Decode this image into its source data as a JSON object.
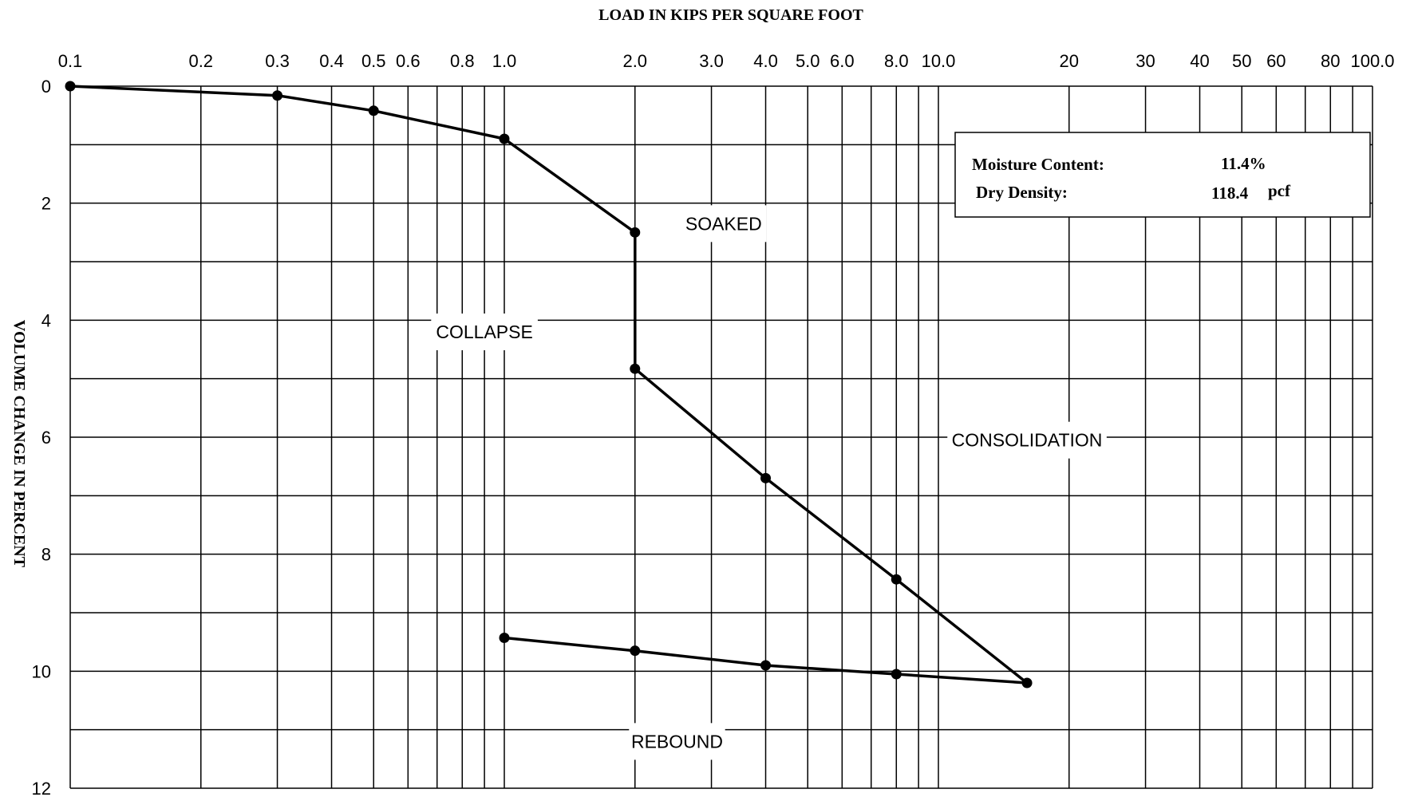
{
  "chart_data": {
    "type": "line",
    "title": "LOAD IN KIPS PER SQUARE FOOT",
    "xlabel": "LOAD IN KIPS PER SQUARE FOOT",
    "ylabel": "VOLUME CHANGE IN PERCENT",
    "x_scale": "log",
    "xlim": [
      0.1,
      100.0
    ],
    "ylim": [
      12,
      0
    ],
    "y_inverted": true,
    "grid": true,
    "x_tick_labels": [
      {
        "value": 0.1,
        "label": "0.1"
      },
      {
        "value": 0.2,
        "label": "0.2"
      },
      {
        "value": 0.3,
        "label": "0.3"
      },
      {
        "value": 0.4,
        "label": "0.4"
      },
      {
        "value": 0.5,
        "label": "0.5"
      },
      {
        "value": 0.6,
        "label": "0.6"
      },
      {
        "value": 0.8,
        "label": "0.8"
      },
      {
        "value": 1.0,
        "label": "1.0"
      },
      {
        "value": 2.0,
        "label": "2.0"
      },
      {
        "value": 3.0,
        "label": "3.0"
      },
      {
        "value": 4.0,
        "label": "4.0"
      },
      {
        "value": 5.0,
        "label": "5.0"
      },
      {
        "value": 6.0,
        "label": "6.0"
      },
      {
        "value": 8.0,
        "label": "8.0"
      },
      {
        "value": 10.0,
        "label": "10.0"
      },
      {
        "value": 20,
        "label": "20"
      },
      {
        "value": 30,
        "label": "30"
      },
      {
        "value": 40,
        "label": "40"
      },
      {
        "value": 50,
        "label": "50"
      },
      {
        "value": 60,
        "label": "60"
      },
      {
        "value": 80,
        "label": "80"
      },
      {
        "value": 100.0,
        "label": "100.0"
      }
    ],
    "x_gridlines": [
      0.1,
      0.2,
      0.3,
      0.4,
      0.5,
      0.6,
      0.7,
      0.8,
      0.9,
      1,
      2,
      3,
      4,
      5,
      6,
      7,
      8,
      9,
      10,
      20,
      30,
      40,
      50,
      60,
      70,
      80,
      90,
      100
    ],
    "y_ticks": [
      0,
      2,
      4,
      6,
      8,
      10,
      12
    ],
    "y_gridlines": [
      0,
      1,
      2,
      3,
      4,
      5,
      6,
      7,
      8,
      9,
      10,
      11,
      12
    ],
    "series": [
      {
        "points": [
          {
            "x": 0.1,
            "y": 0.0
          },
          {
            "x": 0.3,
            "y": 0.16
          },
          {
            "x": 0.5,
            "y": 0.42
          },
          {
            "x": 1.0,
            "y": 0.9
          },
          {
            "x": 2.0,
            "y": 2.5
          },
          {
            "x": 2.0,
            "y": 4.83
          },
          {
            "x": 4.0,
            "y": 6.7
          },
          {
            "x": 8.0,
            "y": 8.43
          },
          {
            "x": 16.0,
            "y": 10.2
          },
          {
            "x": 8.0,
            "y": 10.05
          },
          {
            "x": 4.0,
            "y": 9.9
          },
          {
            "x": 2.0,
            "y": 9.65
          },
          {
            "x": 1.0,
            "y": 9.43
          }
        ]
      }
    ],
    "annotations": [
      {
        "text": "SOAKED",
        "x": 3.2,
        "y": 2.35
      },
      {
        "text": "COLLAPSE",
        "x": 0.9,
        "y": 4.2
      },
      {
        "text": "CONSOLIDATION",
        "x": 16.0,
        "y": 6.05
      },
      {
        "text": "REBOUND",
        "x": 2.5,
        "y": 11.2
      }
    ]
  },
  "info_box": {
    "moisture_label": "Moisture Content:",
    "moisture_value": "11.4%",
    "density_label": "Dry Density:",
    "density_value": "118.4",
    "density_unit": "pcf"
  },
  "colors": {
    "line": "#000000",
    "grid": "#000000",
    "background": "#ffffff"
  }
}
